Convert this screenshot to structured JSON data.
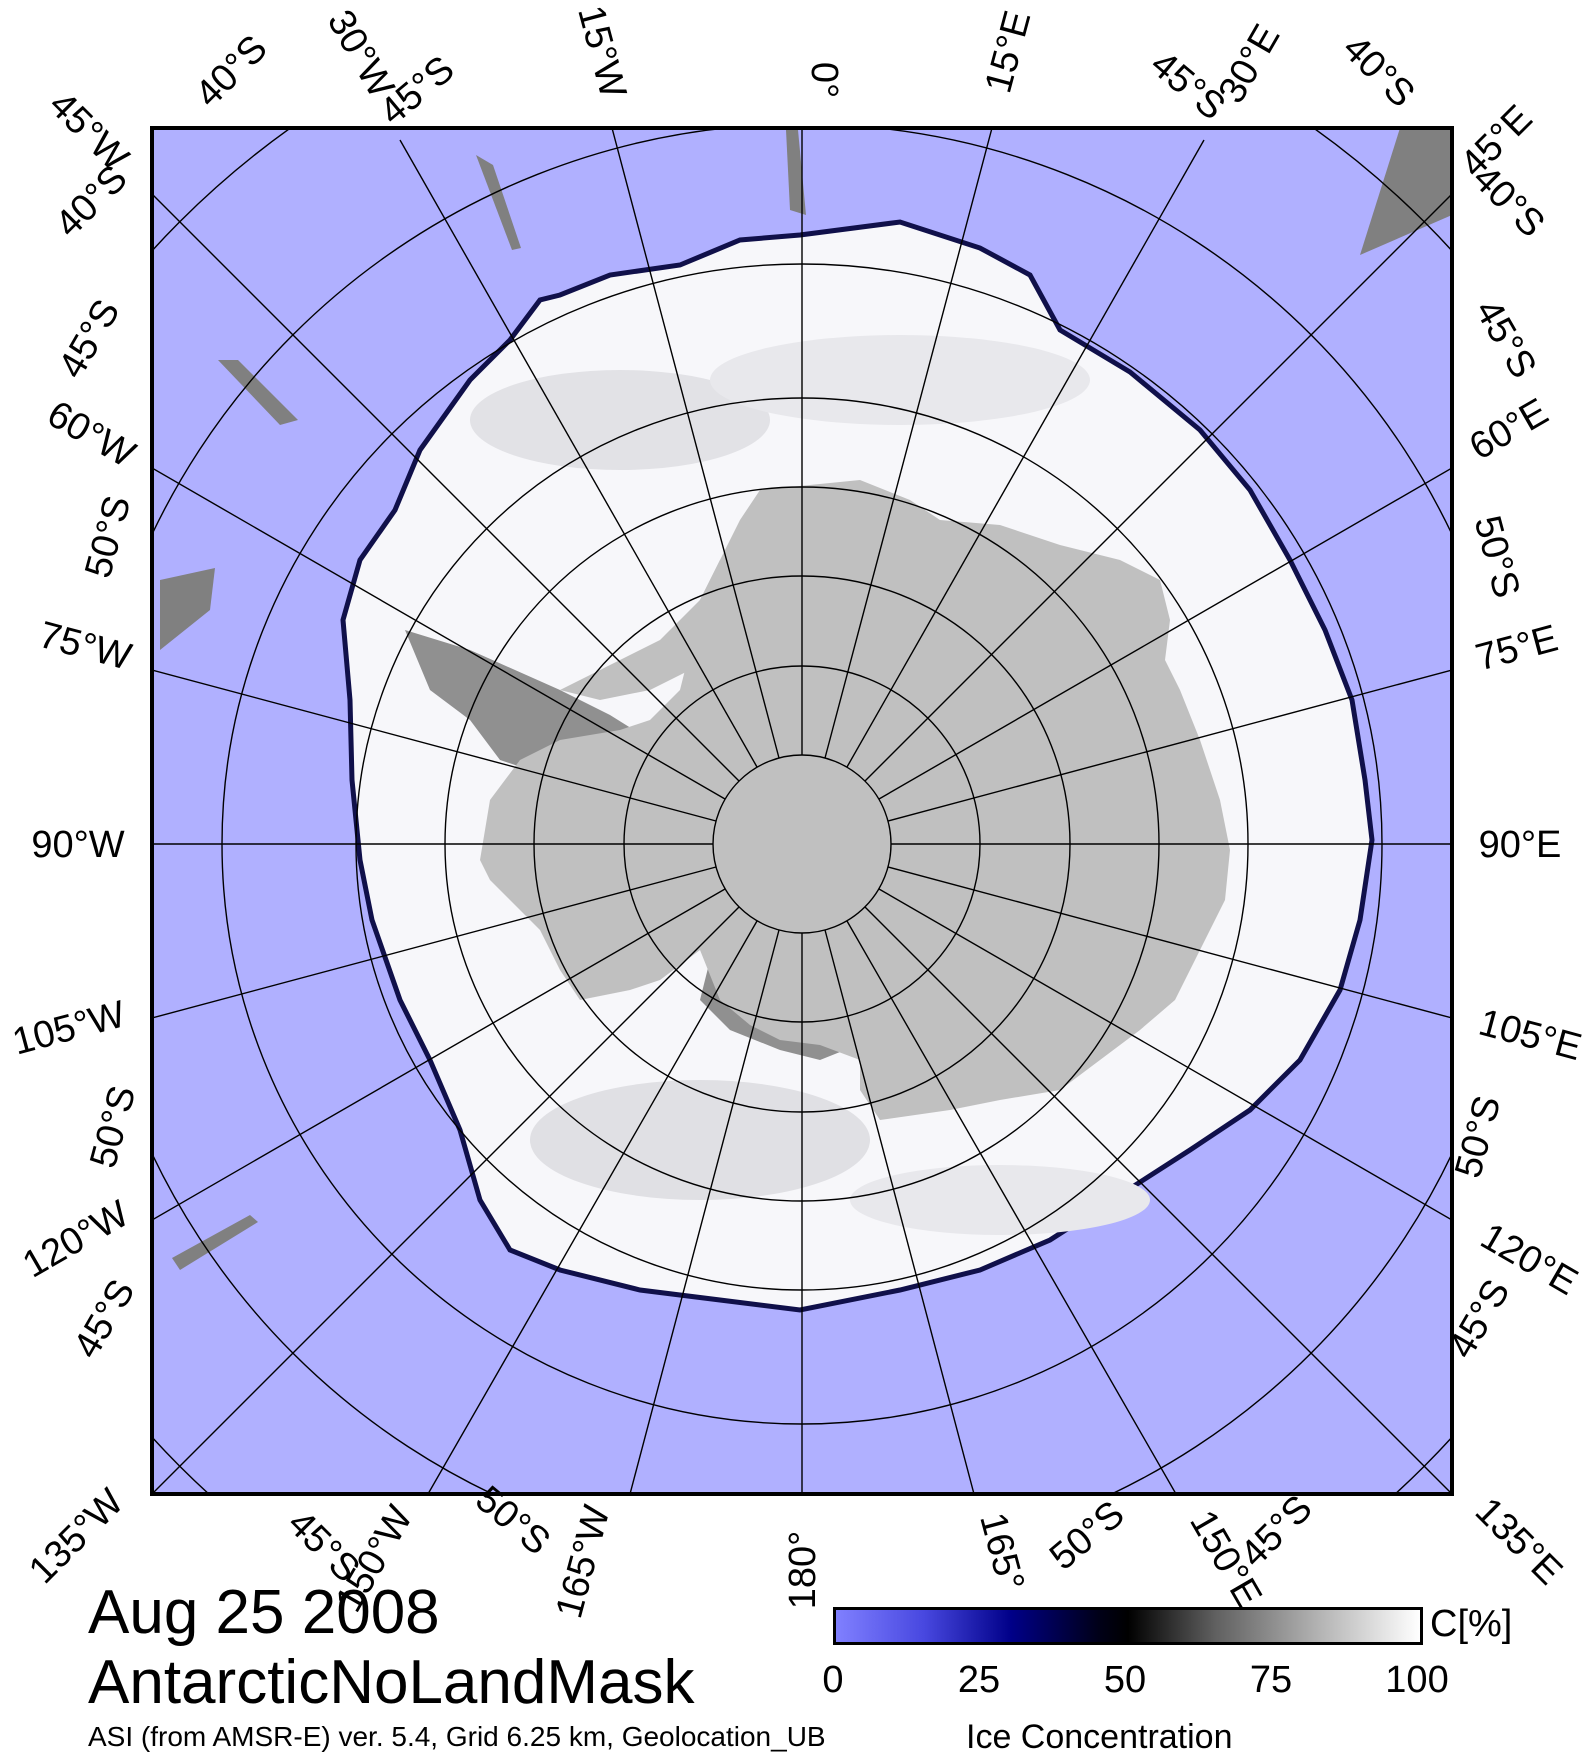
{
  "map": {
    "date": "Aug 25 2008",
    "mask_name": "AntarcticNoLandMask",
    "footnote": "ASI (from AMSR-E) ver. 5.4,  Grid 6.25 km, Geolocation_UB",
    "projection": "south polar stereographic",
    "colors": {
      "ocean": "#b0b0ff",
      "ice_high": "#ffffff",
      "land": "#c0c0c0",
      "ice_shelf": "#909090",
      "frame": "#000000"
    },
    "grid_labels": {
      "top": [
        "45°W",
        "40°S",
        "30°W",
        "45°S",
        "15°W",
        "0°",
        "15°E",
        "45°S",
        "30°E",
        "40°S",
        "45°E"
      ],
      "left": [
        "40°S",
        "45°S",
        "60°W",
        "50°S",
        "75°W",
        "90°W",
        "105°W",
        "50°S",
        "120°W",
        "45°S"
      ],
      "right": [
        "40°S",
        "45°S",
        "60°E",
        "50°S",
        "75°E",
        "90°E",
        "105°E",
        "50°S",
        "120°E",
        "45°S"
      ],
      "bottom": [
        "135°W",
        "45°S",
        "150°W",
        "50°S",
        "165°W",
        "180°",
        "165°",
        "50°S",
        "150°E",
        "45°S",
        "135°E"
      ]
    }
  },
  "colorbar": {
    "title": "Ice Concentration",
    "unit": "C[%]",
    "ticks": [
      "0",
      "25",
      "50",
      "75",
      "100"
    ],
    "min": 0,
    "max": 100,
    "colors": [
      "#8080ff",
      "#000088",
      "#000000",
      "#ffffff"
    ]
  }
}
